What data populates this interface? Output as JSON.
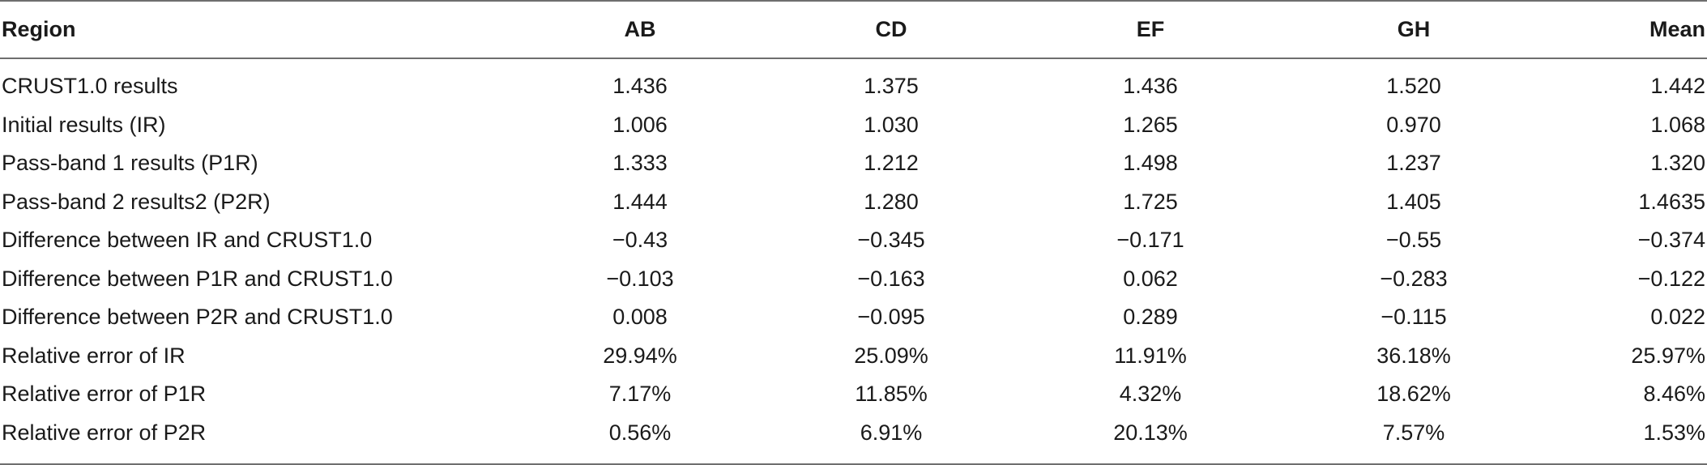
{
  "table": {
    "headers": [
      "Region",
      "AB",
      "CD",
      "EF",
      "GH",
      "Mean"
    ],
    "rows": [
      [
        "CRUST1.0 results",
        "1.436",
        "1.375",
        "1.436",
        "1.520",
        "1.442"
      ],
      [
        "Initial results (IR)",
        "1.006",
        "1.030",
        "1.265",
        "0.970",
        "1.068"
      ],
      [
        "Pass-band 1 results (P1R)",
        "1.333",
        "1.212",
        "1.498",
        "1.237",
        "1.320"
      ],
      [
        "Pass-band 2 results2 (P2R)",
        "1.444",
        "1.280",
        "1.725",
        "1.405",
        "1.4635"
      ],
      [
        "Difference between IR and CRUST1.0",
        "−0.43",
        "−0.345",
        "−0.171",
        "−0.55",
        "−0.374"
      ],
      [
        "Difference between P1R and CRUST1.0",
        "−0.103",
        "−0.163",
        "0.062",
        "−0.283",
        "−0.122"
      ],
      [
        "Difference between P2R and CRUST1.0",
        "0.008",
        "−0.095",
        "0.289",
        "−0.115",
        "0.022"
      ],
      [
        "Relative error of IR",
        "29.94%",
        "25.09%",
        "11.91%",
        "36.18%",
        "25.97%"
      ],
      [
        "Relative error of P1R",
        "7.17%",
        "11.85%",
        "4.32%",
        "18.62%",
        "8.46%"
      ],
      [
        "Relative error of P2R",
        "0.56%",
        "6.91%",
        "20.13%",
        "7.57%",
        "1.53%"
      ]
    ]
  }
}
